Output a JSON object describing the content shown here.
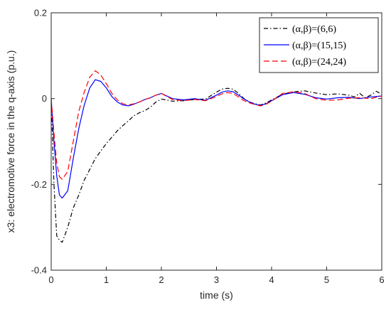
{
  "chart_data": {
    "type": "line",
    "xlabel": "time (s)",
    "ylabel": "x3: electromotive force in the q-axis (p.u.)",
    "xlim": [
      0,
      6
    ],
    "ylim": [
      -0.4,
      0.2
    ],
    "xticks": [
      0,
      1,
      2,
      3,
      4,
      5,
      6
    ],
    "yticks": [
      -0.4,
      -0.2,
      0,
      0.2
    ],
    "xtick_labels": [
      "0",
      "1",
      "2",
      "3",
      "4",
      "5",
      "6"
    ],
    "ytick_labels": [
      "-0.4",
      "-0.2",
      "0",
      "0.2"
    ],
    "grid": false,
    "legend_position": "top-right",
    "series": [
      {
        "name": "(α,β)=(6,6)",
        "color": "#000000",
        "dash": "6,3,1.5,3",
        "x": [
          0,
          0.05,
          0.1,
          0.15,
          0.2,
          0.3,
          0.4,
          0.5,
          0.6,
          0.7,
          0.8,
          0.9,
          1.0,
          1.1,
          1.2,
          1.3,
          1.4,
          1.5,
          1.6,
          1.7,
          1.8,
          1.9,
          2.0,
          2.2,
          2.4,
          2.6,
          2.8,
          3.0,
          3.1,
          3.2,
          3.3,
          3.4,
          3.5,
          3.6,
          3.7,
          3.8,
          3.9,
          4.0,
          4.2,
          4.4,
          4.6,
          4.8,
          5.0,
          5.2,
          5.4,
          5.5,
          5.6,
          5.7,
          5.8,
          5.9,
          6.0
        ],
        "y": [
          0,
          -0.2,
          -0.32,
          -0.33,
          -0.335,
          -0.3,
          -0.255,
          -0.225,
          -0.19,
          -0.165,
          -0.14,
          -0.122,
          -0.105,
          -0.09,
          -0.075,
          -0.063,
          -0.052,
          -0.04,
          -0.033,
          -0.028,
          -0.02,
          -0.008,
          -0.001,
          -0.006,
          -0.005,
          -0.002,
          -0.001,
          0.015,
          0.022,
          0.024,
          0.022,
          0.012,
          0.0,
          -0.008,
          -0.012,
          -0.015,
          -0.01,
          -0.003,
          0.01,
          0.016,
          0.018,
          0.013,
          0.009,
          0.011,
          0.008,
          0.004,
          0.012,
          0.002,
          0.008,
          0.017,
          0.01
        ]
      },
      {
        "name": "(α,β)=(15,15)",
        "color": "#0000ff",
        "dash": "",
        "x": [
          0,
          0.05,
          0.1,
          0.15,
          0.2,
          0.3,
          0.4,
          0.5,
          0.6,
          0.7,
          0.8,
          0.9,
          1.0,
          1.1,
          1.2,
          1.3,
          1.4,
          1.5,
          1.6,
          1.7,
          1.8,
          1.9,
          2.0,
          2.2,
          2.4,
          2.6,
          2.8,
          3.0,
          3.1,
          3.2,
          3.3,
          3.4,
          3.5,
          3.6,
          3.7,
          3.8,
          3.9,
          4.0,
          4.2,
          4.4,
          4.6,
          4.8,
          5.0,
          5.2,
          5.4,
          5.6,
          5.8,
          6.0
        ],
        "y": [
          0,
          -0.1,
          -0.18,
          -0.225,
          -0.232,
          -0.215,
          -0.14,
          -0.07,
          -0.015,
          0.025,
          0.044,
          0.04,
          0.025,
          0.005,
          -0.008,
          -0.015,
          -0.017,
          -0.013,
          -0.008,
          -0.002,
          0.002,
          0.008,
          0.012,
          0.0,
          -0.003,
          0.0,
          -0.004,
          0.008,
          0.015,
          0.018,
          0.016,
          0.008,
          -0.001,
          -0.008,
          -0.013,
          -0.016,
          -0.012,
          -0.005,
          0.009,
          0.014,
          0.01,
          0.002,
          -0.001,
          0.002,
          0.003,
          0.0,
          0.004,
          0.006
        ]
      },
      {
        "name": "(α,β)=(24,24)",
        "color": "#ff0000",
        "dash": "8,4",
        "x": [
          0,
          0.05,
          0.1,
          0.15,
          0.2,
          0.3,
          0.4,
          0.5,
          0.6,
          0.7,
          0.8,
          0.9,
          1.0,
          1.1,
          1.2,
          1.3,
          1.4,
          1.5,
          1.6,
          1.7,
          1.8,
          1.9,
          2.0,
          2.2,
          2.4,
          2.6,
          2.8,
          3.0,
          3.1,
          3.2,
          3.3,
          3.4,
          3.5,
          3.6,
          3.7,
          3.8,
          3.9,
          4.0,
          4.2,
          4.4,
          4.6,
          4.8,
          5.0,
          5.2,
          5.4,
          5.6,
          5.8,
          6.0
        ],
        "y": [
          0,
          -0.08,
          -0.15,
          -0.182,
          -0.188,
          -0.17,
          -0.1,
          -0.03,
          0.015,
          0.05,
          0.065,
          0.055,
          0.035,
          0.012,
          -0.003,
          -0.012,
          -0.015,
          -0.012,
          -0.008,
          -0.002,
          0.002,
          0.008,
          0.012,
          -0.002,
          -0.005,
          -0.002,
          -0.005,
          0.005,
          0.011,
          0.014,
          0.012,
          0.004,
          -0.005,
          -0.01,
          -0.014,
          -0.017,
          -0.013,
          -0.006,
          0.012,
          0.016,
          0.012,
          0.0,
          -0.004,
          -0.003,
          0.001,
          0.002,
          0.0,
          0.006
        ]
      }
    ]
  }
}
